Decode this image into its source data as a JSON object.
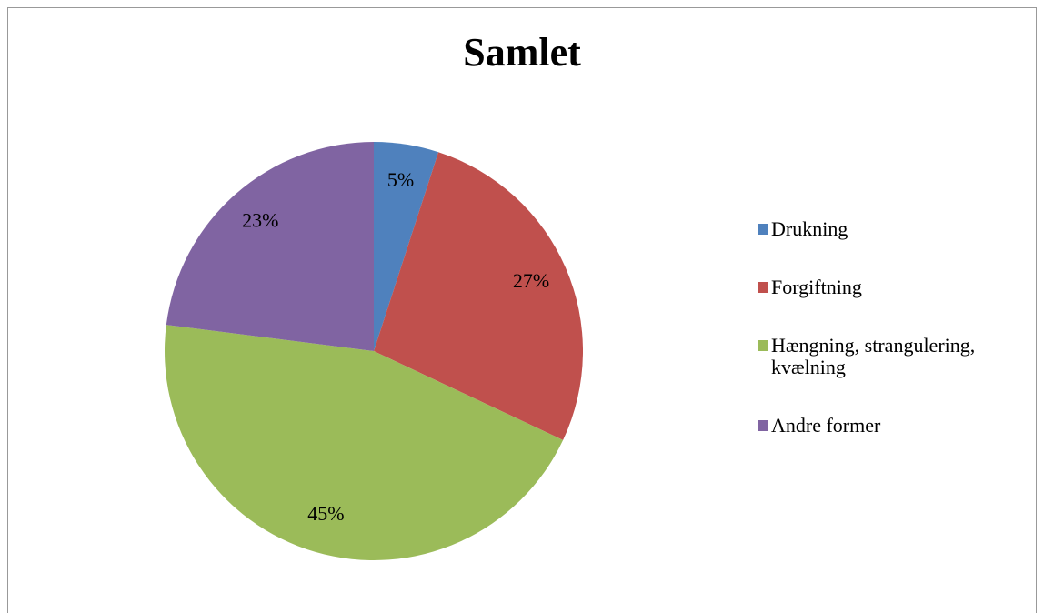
{
  "chart_data": {
    "type": "pie",
    "title": "Samlet",
    "categories": [
      "Drukning",
      "Forgiftning",
      "Hængning, strangulering, kvælning",
      "Andre former"
    ],
    "values": [
      5,
      27,
      45,
      23
    ],
    "value_labels": [
      "5%",
      "27%",
      "45%",
      "23%"
    ],
    "colors": [
      "#4f81bd",
      "#c0504d",
      "#9bbb59",
      "#8064a2"
    ],
    "legend": "right"
  }
}
